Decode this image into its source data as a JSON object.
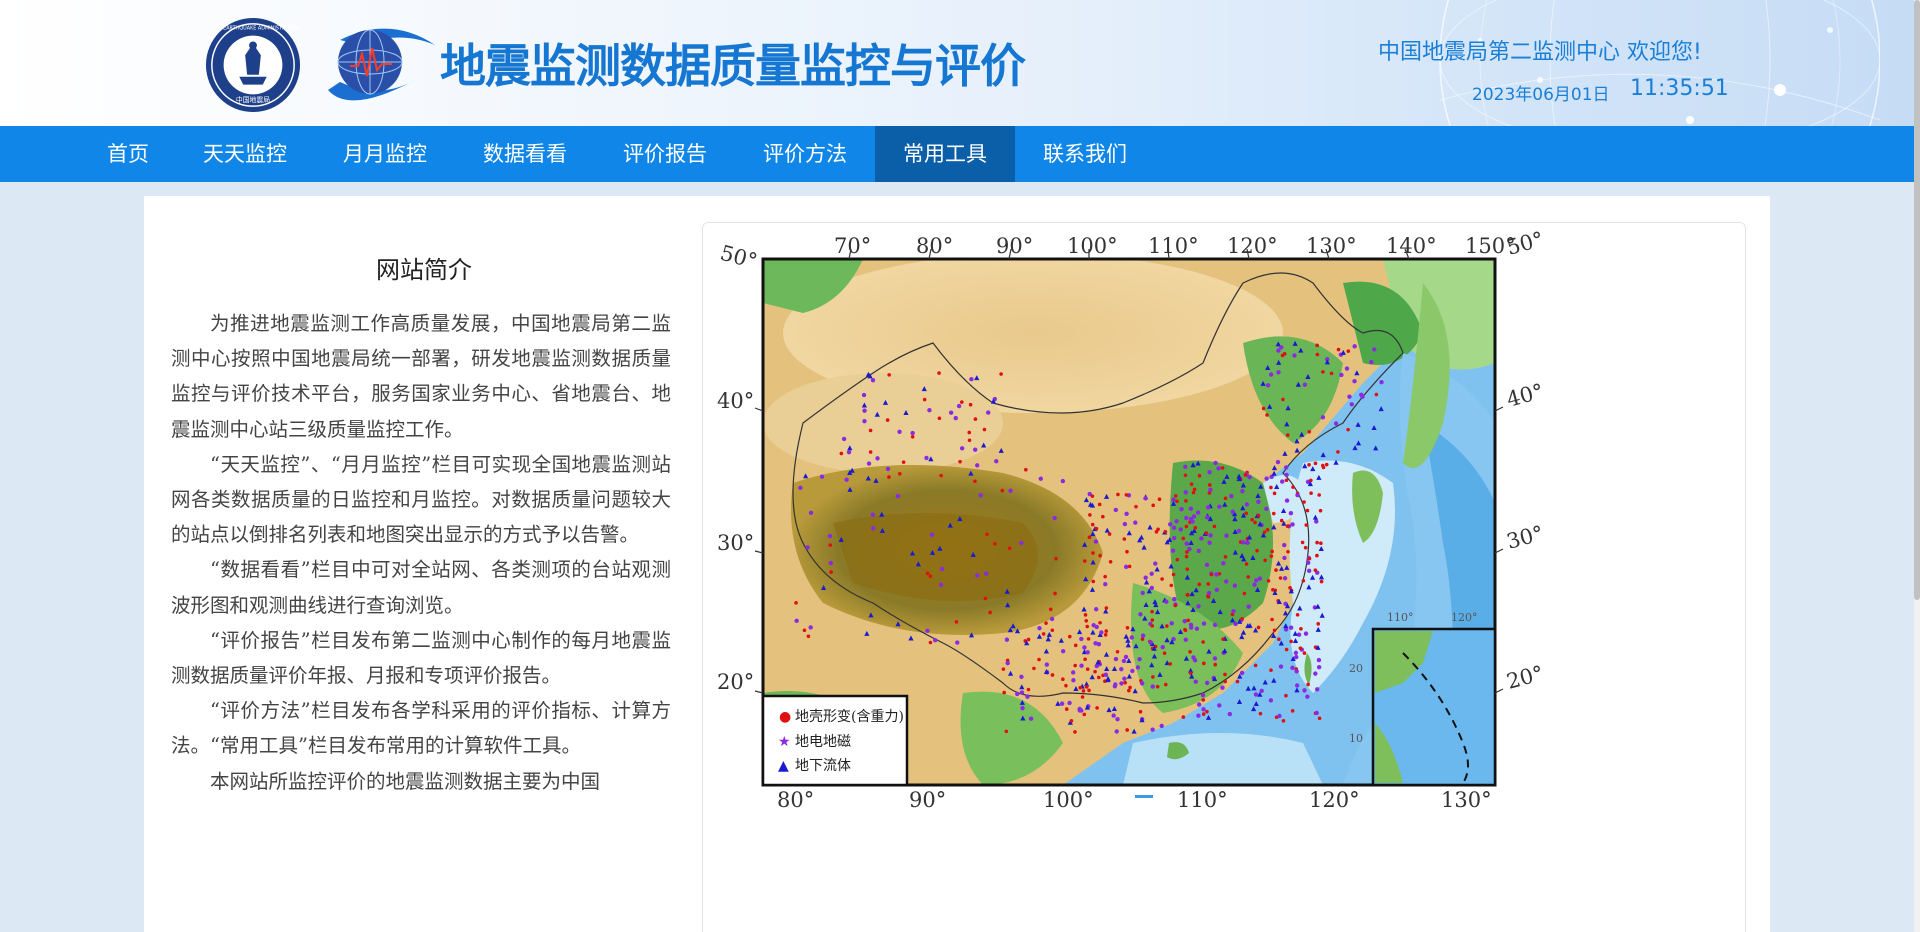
{
  "header": {
    "site_title": "地震监测数据质量监控与评价",
    "welcome": "中国地震局第二监测中心 欢迎您!",
    "date": "2023年06月01日",
    "time": "11:35:51",
    "seal_ring_text": "CHINA EARTHQUAKE ADMINISTRATION",
    "seal_center_text": "中国地震局"
  },
  "nav": {
    "items": [
      "首页",
      "天天监控",
      "月月监控",
      "数据看看",
      "评价报告",
      "评价方法",
      "常用工具",
      "联系我们"
    ],
    "active_index": 6
  },
  "intro": {
    "title": "网站简介",
    "paragraphs": [
      "为推进地震监测工作高质量发展，中国地震局第二监测中心按照中国地震局统一部署，研发地震监测数据质量监控与评价技术平台，服务国家业务中心、省地震台、地震监测中心站三级质量监控工作。",
      "“天天监控”、“月月监控”栏目可实现全国地震监测站网各类数据质量的日监控和月监控。对数据质量问题较大的站点以倒排名列表和地图突出显示的方式予以告警。",
      "“数据看看”栏目中可对全站网、各类测项的台站观测波形图和观测曲线进行查询浏览。",
      "“评价报告”栏目发布第二监测中心制作的每月地震监测数据质量评价年报、月报和专项评价报告。",
      "“评价方法”栏目发布各学科采用的评价指标、计算方法。“常用工具”栏目发布常用的计算软件工具。",
      "本网站所监控评价的地震监测数据主要为中国"
    ]
  },
  "map": {
    "top_lon_labels": [
      "70°",
      "80°",
      "90°",
      "100°",
      "110°",
      "120°",
      "130°",
      "140°",
      "150°"
    ],
    "bottom_lon_labels": [
      "80°",
      "90°",
      "100°",
      "110°",
      "120°",
      "130°"
    ],
    "left_lat_labels": [
      "50°",
      "40°",
      "30°",
      "20°"
    ],
    "right_lat_labels": [
      "50°",
      "40°",
      "30°",
      "20°"
    ],
    "inset_lon_labels": [
      "110°",
      "120°"
    ],
    "inset_lat_labels": [
      "20",
      "10"
    ],
    "legend": [
      {
        "symbol": "●",
        "label": "地壳形变(含重力)",
        "color": "#e01010"
      },
      {
        "symbol": "★",
        "label": "地电地磁",
        "color": "#8a2be2"
      },
      {
        "symbol": "▲",
        "label": "地下流体",
        "color": "#1a1ad0"
      }
    ]
  }
}
